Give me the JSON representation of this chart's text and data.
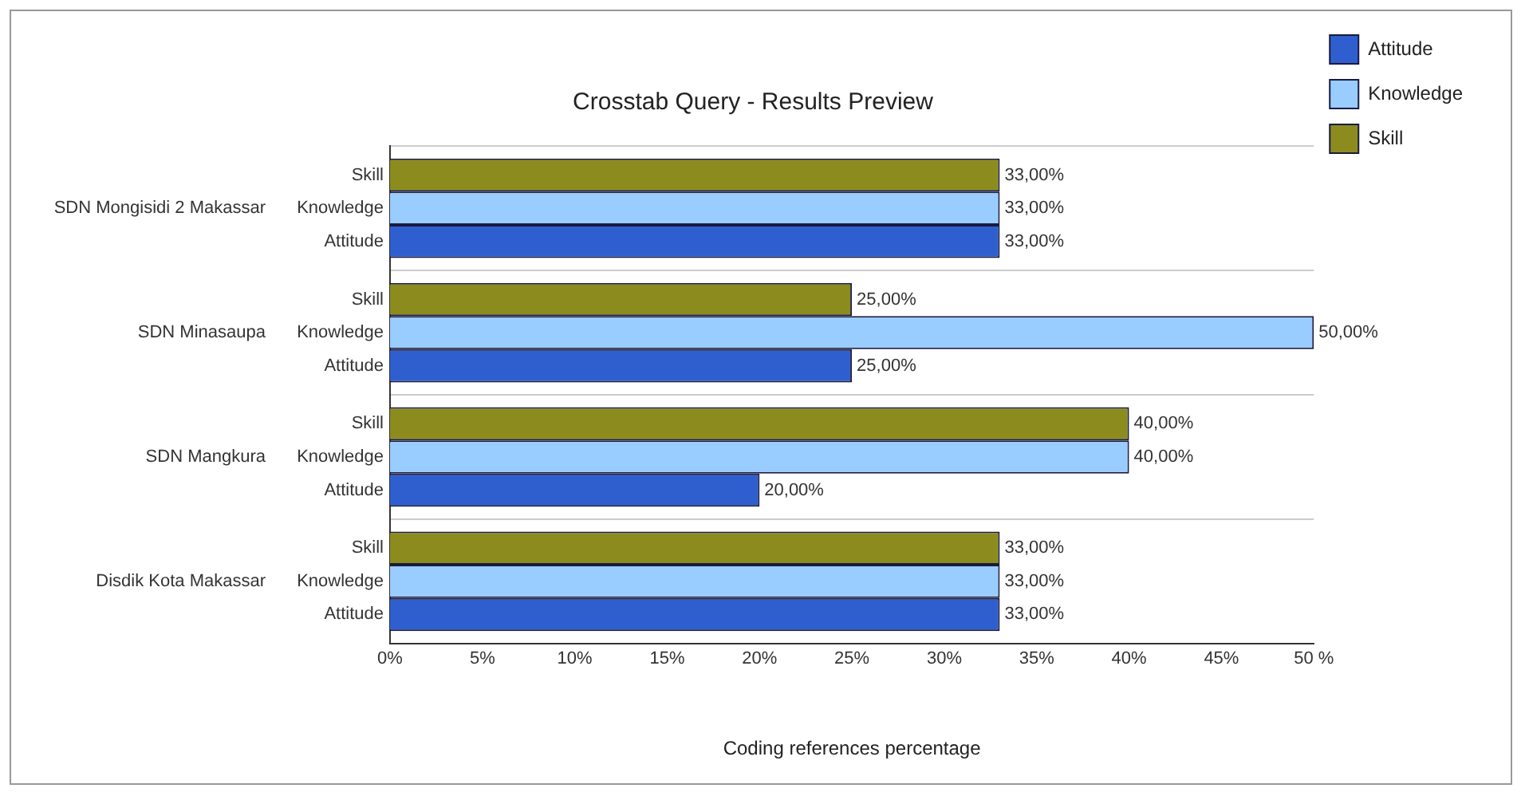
{
  "chart_data": {
    "type": "bar",
    "orientation": "horizontal",
    "title": "Crosstab Query - Results Preview",
    "xlabel": "Coding references percentage",
    "categories": [
      "SDN Mongisidi 2 Makassar",
      "SDN Minasaupa",
      "SDN Mangkura",
      "Disdik Kota Makassar"
    ],
    "series": [
      {
        "name": "Attitude",
        "color": "#2f5fcf",
        "values": [
          33,
          25,
          20,
          33
        ],
        "value_labels": [
          "33,00%",
          "25,00%",
          "20,00%",
          "33,00%"
        ]
      },
      {
        "name": "Knowledge",
        "color": "#99ccff",
        "values": [
          33,
          50,
          40,
          33
        ],
        "value_labels": [
          "33,00%",
          "50,00%",
          "40,00%",
          "33,00%"
        ]
      },
      {
        "name": "Skill",
        "color": "#8c8c1e",
        "values": [
          33,
          25,
          40,
          33
        ],
        "value_labels": [
          "33,00%",
          "25,00%",
          "40,00%",
          "33,00%"
        ]
      }
    ],
    "xlim": [
      0,
      50
    ],
    "xticks": [
      {
        "value": 0,
        "label": "0%"
      },
      {
        "value": 5,
        "label": "5%"
      },
      {
        "value": 10,
        "label": "10%"
      },
      {
        "value": 15,
        "label": "15%"
      },
      {
        "value": 20,
        "label": "20%"
      },
      {
        "value": 25,
        "label": "25%"
      },
      {
        "value": 30,
        "label": "30%"
      },
      {
        "value": 35,
        "label": "35%"
      },
      {
        "value": 40,
        "label": "40%"
      },
      {
        "value": 45,
        "label": "45%"
      },
      {
        "value": 50,
        "label": "50 %"
      }
    ],
    "grid": "y",
    "legend": "top right"
  }
}
